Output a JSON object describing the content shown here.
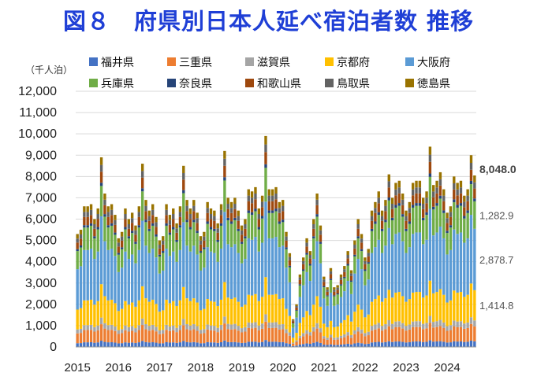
{
  "title": "図８　府県別日本人延べ宿泊者数 推移",
  "chart_data": {
    "type": "bar",
    "stacked": true,
    "title": "図８　府県別日本人延べ宿泊者数 推移",
    "ylabel": "（千人泊）",
    "ylim": [
      0,
      12000
    ],
    "yticks": [
      0,
      1000,
      2000,
      3000,
      4000,
      5000,
      6000,
      7000,
      8000,
      9000,
      10000,
      11000,
      12000
    ],
    "ytick_labels": [
      "0",
      "1,000",
      "2,000",
      "3,000",
      "4,000",
      "5,000",
      "6,000",
      "7,000",
      "8,000",
      "9,000",
      "10,000",
      "11,000",
      "12,000"
    ],
    "year_labels": [
      "2015",
      "2016",
      "2017",
      "2018",
      "2019",
      "2020",
      "2021",
      "2022",
      "2023",
      "2024"
    ],
    "first_month": "2015-01",
    "months": 117,
    "legend": [
      {
        "name": "福井県",
        "color": "#4472C4"
      },
      {
        "name": "三重県",
        "color": "#ED7D31"
      },
      {
        "name": "滋賀県",
        "color": "#A5A5A5"
      },
      {
        "name": "京都府",
        "color": "#FFC000"
      },
      {
        "name": "大阪府",
        "color": "#5B9BD5"
      },
      {
        "name": "兵庫県",
        "color": "#70AD47"
      },
      {
        "name": "奈良県",
        "color": "#264478"
      },
      {
        "name": "和歌山県",
        "color": "#9E480E"
      },
      {
        "name": "鳥取県",
        "color": "#636363"
      },
      {
        "name": "徳島県",
        "color": "#997300"
      }
    ],
    "share_key": [
      "福井県",
      "三重県",
      "滋賀県",
      "京都府",
      "大阪府",
      "兵庫県",
      "奈良県",
      "和歌山県",
      "鳥取県",
      "徳島県"
    ],
    "shares": [
      0.033,
      0.087,
      0.035,
      0.176,
      0.358,
      0.16,
      0.017,
      0.058,
      0.036,
      0.04
    ],
    "totals": [
      5300,
      5500,
      6600,
      6600,
      6700,
      6000,
      6500,
      8900,
      7200,
      6600,
      6700,
      6200,
      5100,
      5400,
      6500,
      6000,
      6300,
      5700,
      6600,
      8600,
      6900,
      6400,
      6700,
      6100,
      5000,
      5200,
      6700,
      6200,
      6500,
      5800,
      6600,
      8500,
      6900,
      6500,
      6900,
      6300,
      5200,
      5400,
      6800,
      6500,
      6400,
      5800,
      6700,
      9200,
      7000,
      6800,
      7000,
      6400,
      5700,
      6000,
      7400,
      7300,
      7500,
      6500,
      7100,
      9900,
      7400,
      7400,
      7500,
      6800,
      6900,
      5400,
      4400,
      1300,
      2000,
      3400,
      4200,
      5100,
      4500,
      6000,
      7200,
      5700,
      3300,
      2800,
      3700,
      2800,
      2900,
      3400,
      3800,
      4500,
      3600,
      5000,
      6000,
      5300,
      4200,
      4600,
      6400,
      6800,
      7300,
      6400,
      6900,
      8100,
      7000,
      7700,
      7800,
      7200,
      6400,
      6800,
      7700,
      7800,
      7800,
      7000,
      7300,
      9400,
      7600,
      7800,
      8200,
      7400,
      6300,
      6600,
      8000,
      7700,
      7800,
      7100,
      7400,
      9000,
      8048
    ],
    "annotations": [
      {
        "label": "8,048.0",
        "segment": "total"
      },
      {
        "label": "1,282.9",
        "segment": "兵庫県"
      },
      {
        "label": "2,878.7",
        "segment": "大阪府"
      },
      {
        "label": "1,414.8",
        "segment": "京都府"
      }
    ]
  }
}
